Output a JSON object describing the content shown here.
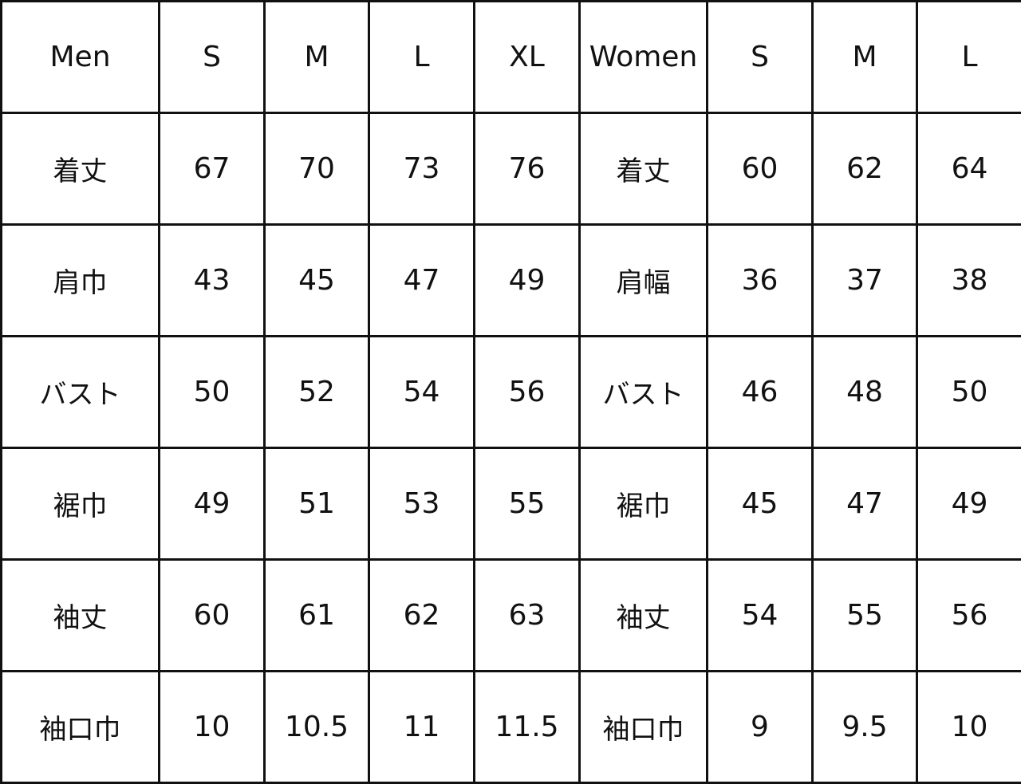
{
  "header": [
    "Men",
    "S",
    "M",
    "L",
    "XL",
    "Women",
    "S",
    "M",
    "L"
  ],
  "rows": [
    [
      "着丈",
      "67",
      "70",
      "73",
      "76",
      "着丈",
      "60",
      "62",
      "64"
    ],
    [
      "肩巾",
      "43",
      "45",
      "47",
      "49",
      "肩幅",
      "36",
      "37",
      "38"
    ],
    [
      "バスト",
      "50",
      "52",
      "54",
      "56",
      "バスト",
      "46",
      "48",
      "50"
    ],
    [
      "裾巾",
      "49",
      "51",
      "53",
      "55",
      "裾巾",
      "45",
      "47",
      "49"
    ],
    [
      "袖丈",
      "60",
      "61",
      "62",
      "63",
      "袖丈",
      "54",
      "55",
      "56"
    ],
    [
      "袖口巾",
      "10",
      "10.5",
      "11",
      "11.5",
      "袖口巾",
      "9",
      "9.5",
      "10"
    ]
  ]
}
